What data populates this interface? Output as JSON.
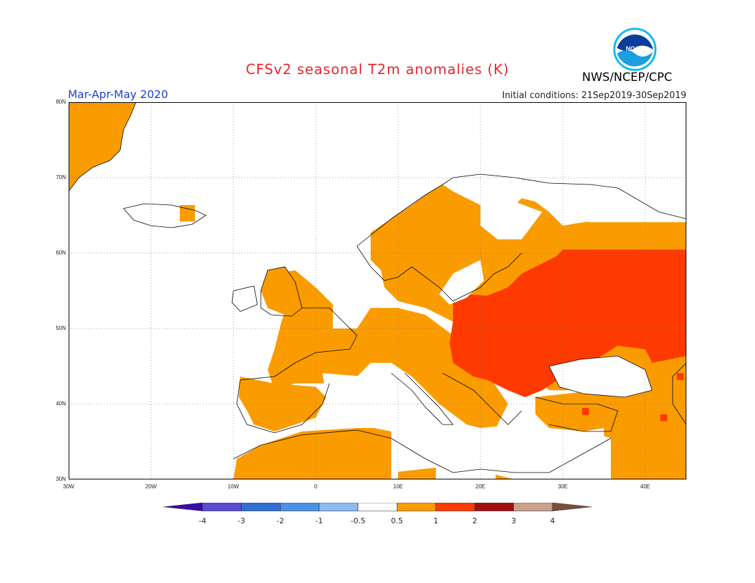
{
  "title": "CFSv2 seasonal T2m anomalies (K)",
  "season": "Mar-Apr-May 2020",
  "initial_conditions": "Initial conditions: 21Sep2019-30Sep2019",
  "agency": "NWS/NCEP/CPC",
  "logo_text": "NOAA",
  "map": {
    "lon_range": [
      -30,
      45
    ],
    "lat_range": [
      30,
      80
    ],
    "lat_labels": [
      "80N",
      "70N",
      "60N",
      "50N",
      "40N",
      "30N"
    ],
    "lat_values": [
      80,
      70,
      60,
      50,
      40,
      30
    ],
    "lon_labels": [
      "30W",
      "20W",
      "10W",
      "0",
      "10E",
      "20E",
      "30E",
      "40E"
    ],
    "lon_values": [
      -30,
      -20,
      -10,
      0,
      10,
      20,
      30,
      40
    ],
    "grid": "dotted"
  },
  "colorbar": {
    "labels": [
      "-4",
      "-3",
      "-2",
      "-1",
      "-0.5",
      "0.5",
      "1",
      "2",
      "3",
      "4"
    ],
    "colors": [
      "#3a0aa8",
      "#5a4ad4",
      "#2f6fd6",
      "#4a92e8",
      "#8cbcf2",
      "#ffffff",
      "#fa9c00",
      "#ff3a00",
      "#a01010",
      "#caa08e",
      "#7a4e3e"
    ]
  }
}
